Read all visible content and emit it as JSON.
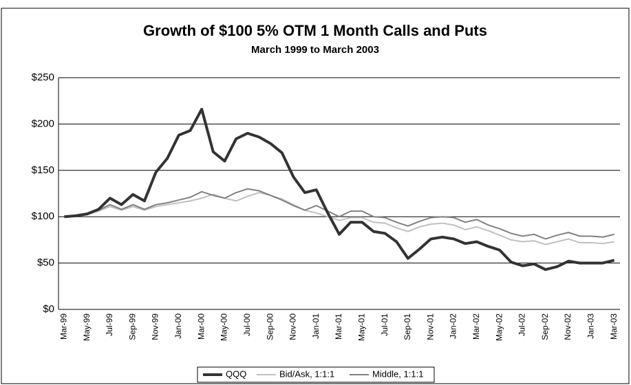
{
  "chart_data": {
    "type": "line",
    "title": "Growth of $100 5% OTM 1 Month Calls and Puts",
    "subtitle": "March 1999 to March 2003",
    "categories": [
      "Mar-99",
      null,
      "May-99",
      null,
      "Jul-99",
      null,
      "Sep-99",
      null,
      "Nov-99",
      null,
      "Jan-00",
      null,
      "Mar-00",
      null,
      "May-00",
      null,
      "Jul-00",
      null,
      "Sep-00",
      null,
      "Nov-00",
      null,
      "Jan-01",
      null,
      "Mar-01",
      null,
      "May-01",
      null,
      "Jul-01",
      null,
      "Sep-01",
      null,
      "Nov-01",
      null,
      "Jan-02",
      null,
      "Mar-02",
      null,
      "May-02",
      null,
      "Jul-02",
      null,
      "Sep-02",
      null,
      "Nov-02",
      null,
      "Jan-03",
      null,
      "Mar-03"
    ],
    "series": [
      {
        "name": "QQQ",
        "color": "#333333",
        "width": 4,
        "values": [
          100,
          101,
          103,
          108,
          120,
          113,
          124,
          117,
          148,
          163,
          188,
          193,
          216,
          170,
          160,
          184,
          190,
          186,
          179,
          169,
          143,
          126,
          129,
          104,
          81,
          94,
          94,
          84,
          82,
          73,
          55,
          65,
          76,
          78,
          76,
          71,
          73,
          68,
          64,
          51,
          47,
          49,
          43,
          46,
          52,
          50,
          50,
          50,
          53
        ]
      },
      {
        "name": "Bid/Ask, 1:1:1",
        "color": "#c0c0c0",
        "width": 2,
        "values": [
          100,
          101,
          102,
          106,
          111,
          107,
          111,
          107,
          111,
          113,
          115,
          117,
          120,
          124,
          120,
          117,
          122,
          126,
          123,
          119,
          113,
          107,
          104,
          100,
          96,
          99,
          99,
          94,
          93,
          88,
          84,
          89,
          92,
          93,
          91,
          86,
          89,
          85,
          80,
          75,
          73,
          74,
          70,
          73,
          76,
          72,
          72,
          71,
          73
        ]
      },
      {
        "name": "Middle, 1:1:1",
        "color": "#808080",
        "width": 2,
        "values": [
          100,
          101,
          103,
          107,
          113,
          108,
          113,
          108,
          113,
          115,
          118,
          121,
          127,
          123,
          120,
          126,
          130,
          128,
          123,
          118,
          112,
          107,
          112,
          106,
          100,
          106,
          106,
          100,
          99,
          94,
          90,
          95,
          99,
          100,
          99,
          94,
          97,
          91,
          87,
          82,
          79,
          81,
          76,
          80,
          83,
          79,
          79,
          78,
          81
        ]
      }
    ],
    "ylim": [
      0,
      250
    ],
    "yticks": [
      {
        "value": 0,
        "label": "$0"
      },
      {
        "value": 50,
        "label": "$50"
      },
      {
        "value": 100,
        "label": "$100"
      },
      {
        "value": 150,
        "label": "$150"
      },
      {
        "value": 200,
        "label": "$200"
      },
      {
        "value": 250,
        "label": "$250"
      }
    ],
    "grid": true,
    "legend": "bottom"
  }
}
